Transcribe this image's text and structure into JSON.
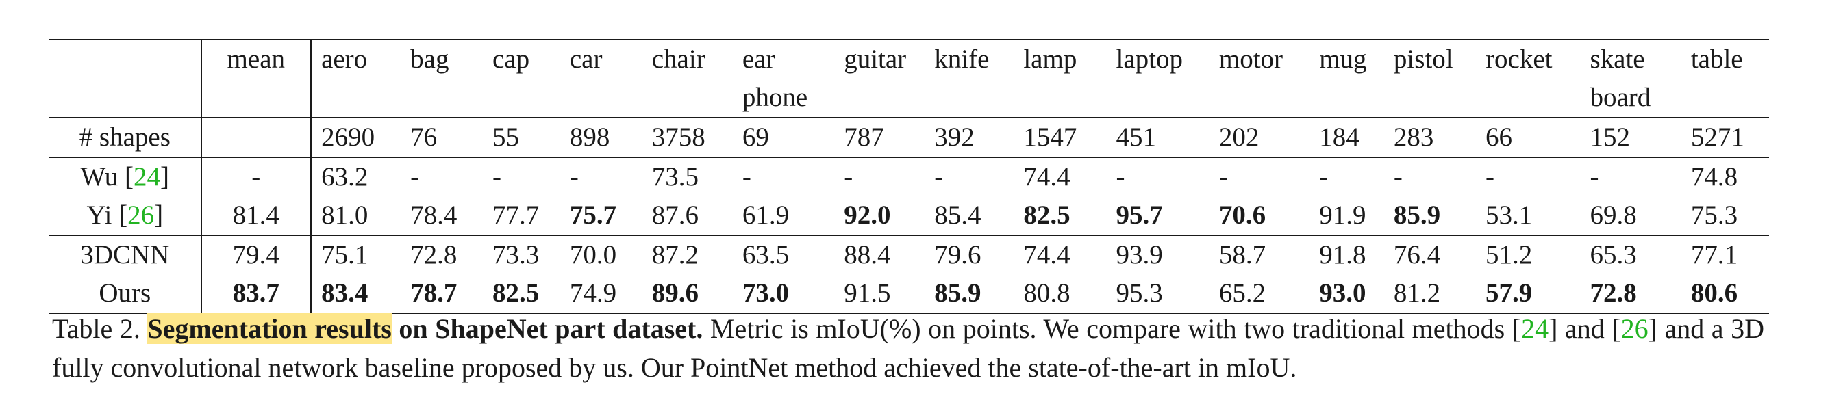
{
  "table": {
    "header": [
      {
        "label": "",
        "label2": ""
      },
      {
        "label": "mean",
        "label2": ""
      },
      {
        "label": "aero",
        "label2": ""
      },
      {
        "label": "bag",
        "label2": ""
      },
      {
        "label": "cap",
        "label2": ""
      },
      {
        "label": "car",
        "label2": ""
      },
      {
        "label": "chair",
        "label2": ""
      },
      {
        "label": "ear",
        "label2": "phone"
      },
      {
        "label": "guitar",
        "label2": ""
      },
      {
        "label": "knife",
        "label2": ""
      },
      {
        "label": "lamp",
        "label2": ""
      },
      {
        "label": "laptop",
        "label2": ""
      },
      {
        "label": "motor",
        "label2": ""
      },
      {
        "label": "mug",
        "label2": ""
      },
      {
        "label": "pistol",
        "label2": ""
      },
      {
        "label": "rocket",
        "label2": ""
      },
      {
        "label": "skate",
        "label2": "board"
      },
      {
        "label": "table",
        "label2": ""
      }
    ],
    "shapes_row": {
      "label": "# shapes",
      "values": [
        "",
        "2690",
        "76",
        "55",
        "898",
        "3758",
        "69",
        "787",
        "392",
        "1547",
        "451",
        "202",
        "184",
        "283",
        "66",
        "152",
        "5271"
      ]
    },
    "method_rows": [
      {
        "name": "Wu",
        "cite": "24",
        "values": [
          "-",
          "63.2",
          "-",
          "-",
          "-",
          "73.5",
          "-",
          "-",
          "-",
          "74.4",
          "-",
          "-",
          "-",
          "-",
          "-",
          "-",
          "74.8"
        ],
        "bold": []
      },
      {
        "name": "Yi",
        "cite": "26",
        "values": [
          "81.4",
          "81.0",
          "78.4",
          "77.7",
          "75.7",
          "87.6",
          "61.9",
          "92.0",
          "85.4",
          "82.5",
          "95.7",
          "70.6",
          "91.9",
          "85.9",
          "53.1",
          "69.8",
          "75.3"
        ],
        "bold": [
          4,
          7,
          9,
          10,
          11,
          13
        ]
      },
      {
        "name": "3DCNN",
        "cite": "",
        "values": [
          "79.4",
          "75.1",
          "72.8",
          "73.3",
          "70.0",
          "87.2",
          "63.5",
          "88.4",
          "79.6",
          "74.4",
          "93.9",
          "58.7",
          "91.8",
          "76.4",
          "51.2",
          "65.3",
          "77.1"
        ],
        "bold": []
      },
      {
        "name": "Ours",
        "cite": "",
        "values": [
          "83.7",
          "83.4",
          "78.7",
          "82.5",
          "74.9",
          "89.6",
          "73.0",
          "91.5",
          "85.9",
          "80.8",
          "95.3",
          "65.2",
          "93.0",
          "81.2",
          "57.9",
          "72.8",
          "80.6"
        ],
        "bold": [
          0,
          1,
          2,
          3,
          5,
          6,
          8,
          12,
          14,
          15,
          16
        ]
      }
    ]
  },
  "caption": {
    "prefix": "Table 2. ",
    "highlight": "Segmentation results",
    "bold_rest": " on ShapeNet part dataset.",
    "text1": " Metric is mIoU(%) on points. We compare with two traditional methods [",
    "cite1": "24",
    "text2": "] and [",
    "cite2": "26",
    "text3": "] and a 3D fully convolutional network baseline proposed by us. Our PointNet method achieved the state-of-the-art in mIoU."
  }
}
